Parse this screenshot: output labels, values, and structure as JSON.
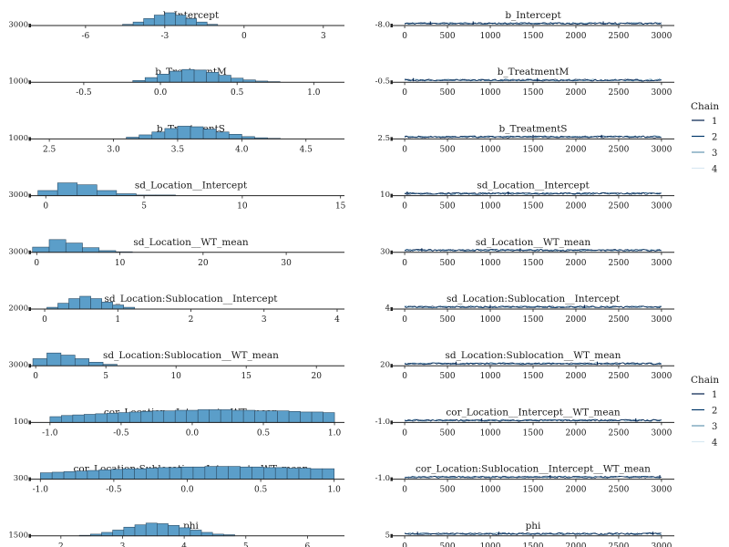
{
  "legend": {
    "title": "Chain",
    "entries": [
      "1",
      "2",
      "3",
      "4"
    ],
    "colors": [
      "#011f4b",
      "#03396c",
      "#6497b1",
      "#d8e8f2"
    ],
    "instances": 2
  },
  "chart_data": [
    {
      "type": "histogram",
      "title": "b_Intercept",
      "xlim": [
        -8.1,
        3.8
      ],
      "ticks": [
        -6,
        -3,
        0,
        3
      ],
      "tick_labels": [
        "-6",
        "-3",
        "0",
        "3"
      ],
      "bins": {
        "start": -4.6,
        "width": 0.4,
        "counts": [
          2,
          6,
          12,
          18,
          22,
          18,
          12,
          6,
          2
        ]
      },
      "y_label": "3000"
    },
    {
      "type": "trace",
      "title": "b_Intercept",
      "xlim": [
        -150,
        3150
      ],
      "ticks": [
        0,
        500,
        1000,
        1500,
        2000,
        2500,
        3000
      ],
      "y_label": "-8.0",
      "spikes": [
        300,
        800,
        2320
      ]
    },
    {
      "type": "histogram",
      "title": "b_TreatmentM",
      "xlim": [
        -0.85,
        1.2
      ],
      "ticks": [
        -0.5,
        0.0,
        0.5,
        1.0
      ],
      "tick_labels": [
        "-0.5",
        "0.0",
        "0.5",
        "1.0"
      ],
      "bins": {
        "start": -0.18,
        "width": 0.08,
        "counts": [
          3,
          8,
          14,
          19,
          22,
          21,
          17,
          12,
          7,
          4,
          2,
          1
        ]
      },
      "y_label": "1000"
    },
    {
      "type": "trace",
      "title": "b_TreatmentM",
      "xlim": [
        -150,
        3150
      ],
      "ticks": [
        0,
        500,
        1000,
        1500,
        2000,
        2500,
        3000
      ],
      "y_label": "-0.5",
      "spikes": [
        100,
        1550
      ]
    },
    {
      "type": "histogram",
      "title": "b_TreatmentS",
      "xlim": [
        2.35,
        4.8
      ],
      "ticks": [
        2.5,
        3.0,
        3.5,
        4.0,
        4.5
      ],
      "tick_labels": [
        "2.5",
        "3.0",
        "3.5",
        "4.0",
        "4.5"
      ],
      "bins": {
        "start": 3.1,
        "width": 0.1,
        "counts": [
          3,
          7,
          12,
          18,
          22,
          21,
          17,
          12,
          8,
          4,
          2,
          1
        ]
      },
      "y_label": "1000"
    },
    {
      "type": "trace",
      "title": "b_TreatmentS",
      "xlim": [
        -150,
        3150
      ],
      "ticks": [
        0,
        500,
        1000,
        1500,
        2000,
        2500,
        3000
      ],
      "y_label": "2.5",
      "spikes": [
        1500,
        2300
      ]
    },
    {
      "type": "histogram",
      "title": "sd_Location__Intercept",
      "xlim": [
        -0.8,
        15.2
      ],
      "ticks": [
        0,
        5,
        10,
        15
      ],
      "tick_labels": [
        "0",
        "5",
        "10",
        "15"
      ],
      "bins": {
        "start": -0.4,
        "width": 1.0,
        "counts": [
          8,
          20,
          17,
          8,
          3,
          1,
          1
        ]
      },
      "y_label": "3000"
    },
    {
      "type": "trace",
      "title": "sd_Location__Intercept",
      "xlim": [
        -150,
        3150
      ],
      "ticks": [
        0,
        500,
        1000,
        1500,
        2000,
        2500,
        3000
      ],
      "y_label": "10",
      "spikes": [
        30,
        1210
      ]
    },
    {
      "type": "histogram",
      "title": "sd_Location__WT_mean",
      "xlim": [
        -0.8,
        37
      ],
      "ticks": [
        0,
        10,
        20,
        30
      ],
      "tick_labels": [
        "0",
        "10",
        "20",
        "30"
      ],
      "bins": {
        "start": -0.5,
        "width": 2.0,
        "counts": [
          9,
          22,
          16,
          8,
          3,
          1
        ]
      },
      "y_label": "3000"
    },
    {
      "type": "trace",
      "title": "sd_Location__WT_mean",
      "xlim": [
        -150,
        3150
      ],
      "ticks": [
        0,
        500,
        1000,
        1500,
        2000,
        2500,
        3000
      ],
      "y_label": "30",
      "spikes": [
        200,
        1350
      ]
    },
    {
      "type": "histogram",
      "title": "sd_Location:Sublocation__Intercept",
      "xlim": [
        -0.2,
        4.1
      ],
      "ticks": [
        0,
        1,
        2,
        3,
        4
      ],
      "tick_labels": [
        "0",
        "1",
        "2",
        "3",
        "4"
      ],
      "bins": {
        "start": 0.03,
        "width": 0.15,
        "counts": [
          3,
          10,
          18,
          22,
          18,
          12,
          7,
          3
        ]
      },
      "y_label": "2000"
    },
    {
      "type": "trace",
      "title": "sd_Location:Sublocation__Intercept",
      "xlim": [
        -150,
        3150
      ],
      "ticks": [
        0,
        500,
        1000,
        1500,
        2000,
        2500,
        3000
      ],
      "y_label": "4",
      "spikes": [
        1000,
        2100
      ]
    },
    {
      "type": "histogram",
      "title": "sd_Location:Sublocation__WT_mean",
      "xlim": [
        -0.4,
        22
      ],
      "ticks": [
        0,
        5,
        10,
        15,
        20
      ],
      "tick_labels": [
        "0",
        "5",
        "10",
        "15",
        "20"
      ],
      "bins": {
        "start": -0.2,
        "width": 1.0,
        "counts": [
          10,
          18,
          15,
          10,
          5,
          2
        ]
      },
      "y_label": "3000"
    },
    {
      "type": "trace",
      "title": "sd_Location:Sublocation__WT_mean",
      "xlim": [
        -150,
        3150
      ],
      "ticks": [
        0,
        500,
        1000,
        1500,
        2000,
        2500,
        3000
      ],
      "y_label": "20",
      "spikes": [
        600,
        2250
      ]
    },
    {
      "type": "histogram",
      "title": "cor_Location__Intercept__WT_mean",
      "xlim": [
        -1.14,
        1.07
      ],
      "ticks": [
        -1.0,
        -0.5,
        0.0,
        0.5,
        1.0
      ],
      "tick_labels": [
        "-1.0",
        "-0.5",
        "0.0",
        "0.5",
        "1.0"
      ],
      "bins": {
        "start": -1.0,
        "width": 0.08,
        "counts": [
          10,
          12,
          13,
          14,
          15,
          16,
          17,
          18,
          19,
          20,
          20,
          21,
          21,
          22,
          22,
          22,
          21,
          21,
          20,
          20,
          20,
          19,
          18,
          18,
          17
        ]
      },
      "y_label": "100"
    },
    {
      "type": "trace",
      "title": "cor_Location__Intercept__WT_mean",
      "xlim": [
        -150,
        3150
      ],
      "ticks": [
        0,
        500,
        1000,
        1500,
        2000,
        2500,
        3000
      ],
      "y_label": "-1.0",
      "spikes": [
        900,
        2700
      ]
    },
    {
      "type": "histogram",
      "title": "cor_Location:Sublocation__Intercept__WT_mean",
      "xlim": [
        -1.07,
        1.07
      ],
      "ticks": [
        -1.0,
        -0.5,
        0.0,
        0.5,
        1.0
      ],
      "tick_labels": [
        "-1.0",
        "-0.5",
        "0.0",
        "0.5",
        "1.0"
      ],
      "bins": {
        "start": -1.0,
        "width": 0.08,
        "counts": [
          11,
          12,
          13,
          14,
          15,
          16,
          17,
          18,
          18,
          19,
          20,
          20,
          21,
          21,
          22,
          22,
          22,
          21,
          21,
          20,
          20,
          19,
          19,
          18,
          18
        ]
      },
      "y_label": "300"
    },
    {
      "type": "trace",
      "title": "cor_Location:Sublocation__Intercept__WT_mean",
      "xlim": [
        -150,
        3150
      ],
      "ticks": [
        0,
        500,
        1000,
        1500,
        2000,
        2500,
        3000
      ],
      "y_label": "-1.0",
      "spikes": [
        1700,
        2980
      ]
    },
    {
      "type": "histogram",
      "title": "phi",
      "xlim": [
        1.5,
        6.6
      ],
      "ticks": [
        2,
        3,
        4,
        5,
        6
      ],
      "tick_labels": [
        "2",
        "3",
        "4",
        "5",
        "6"
      ],
      "bins": {
        "start": 2.3,
        "width": 0.18,
        "counts": [
          1,
          3,
          6,
          10,
          15,
          19,
          22,
          21,
          18,
          14,
          10,
          6,
          3,
          2
        ]
      },
      "y_label": "1500"
    },
    {
      "type": "trace",
      "title": "phi",
      "xlim": [
        -150,
        3150
      ],
      "ticks": [
        0,
        500,
        1000,
        1500,
        2000,
        2500,
        3000
      ],
      "y_label": "5",
      "spikes": [
        150,
        1100,
        2900
      ]
    }
  ]
}
